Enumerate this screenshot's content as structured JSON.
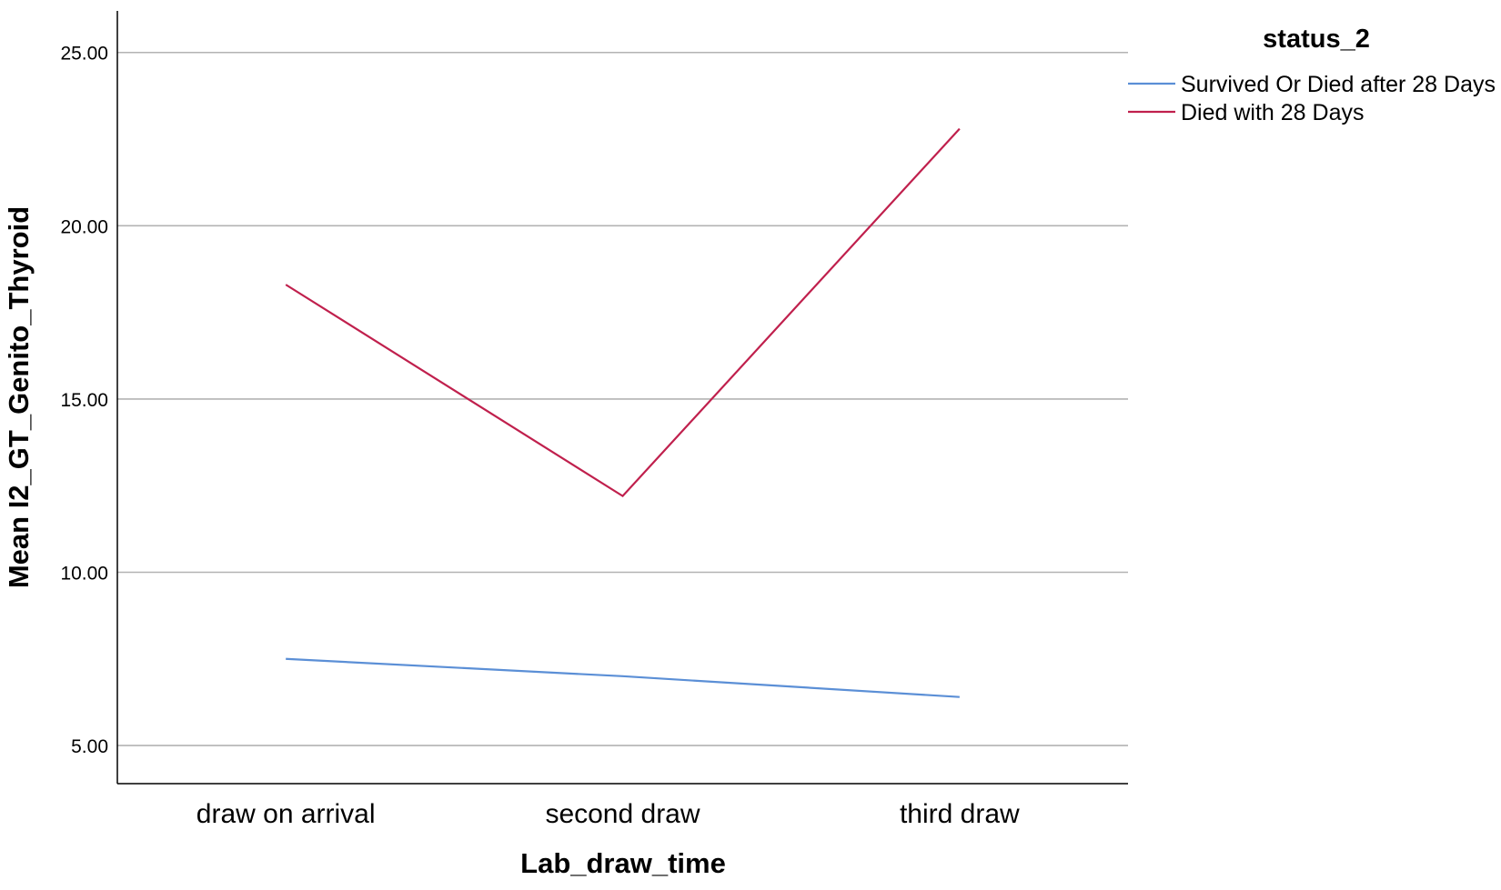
{
  "chart_data": {
    "type": "line",
    "title": "",
    "xlabel": "Lab_draw_time",
    "ylabel": "Mean I2_GT_Genito_Thyroid",
    "categories": [
      "draw on arrival",
      "second draw",
      "third draw"
    ],
    "yticks": [
      "5.00",
      "10.00",
      "15.00",
      "20.00",
      "25.00"
    ],
    "ylim": [
      3.9,
      26.2
    ],
    "grid": true,
    "legend": {
      "title": "status_2",
      "position": "top-right"
    },
    "series": [
      {
        "name": "Survived Or Died after 28 Days",
        "color": "#5b8fd6",
        "values": [
          7.5,
          7.0,
          6.4
        ]
      },
      {
        "name": "Died with 28 Days",
        "color": "#c0204d",
        "values": [
          18.3,
          12.2,
          22.8
        ]
      }
    ]
  }
}
